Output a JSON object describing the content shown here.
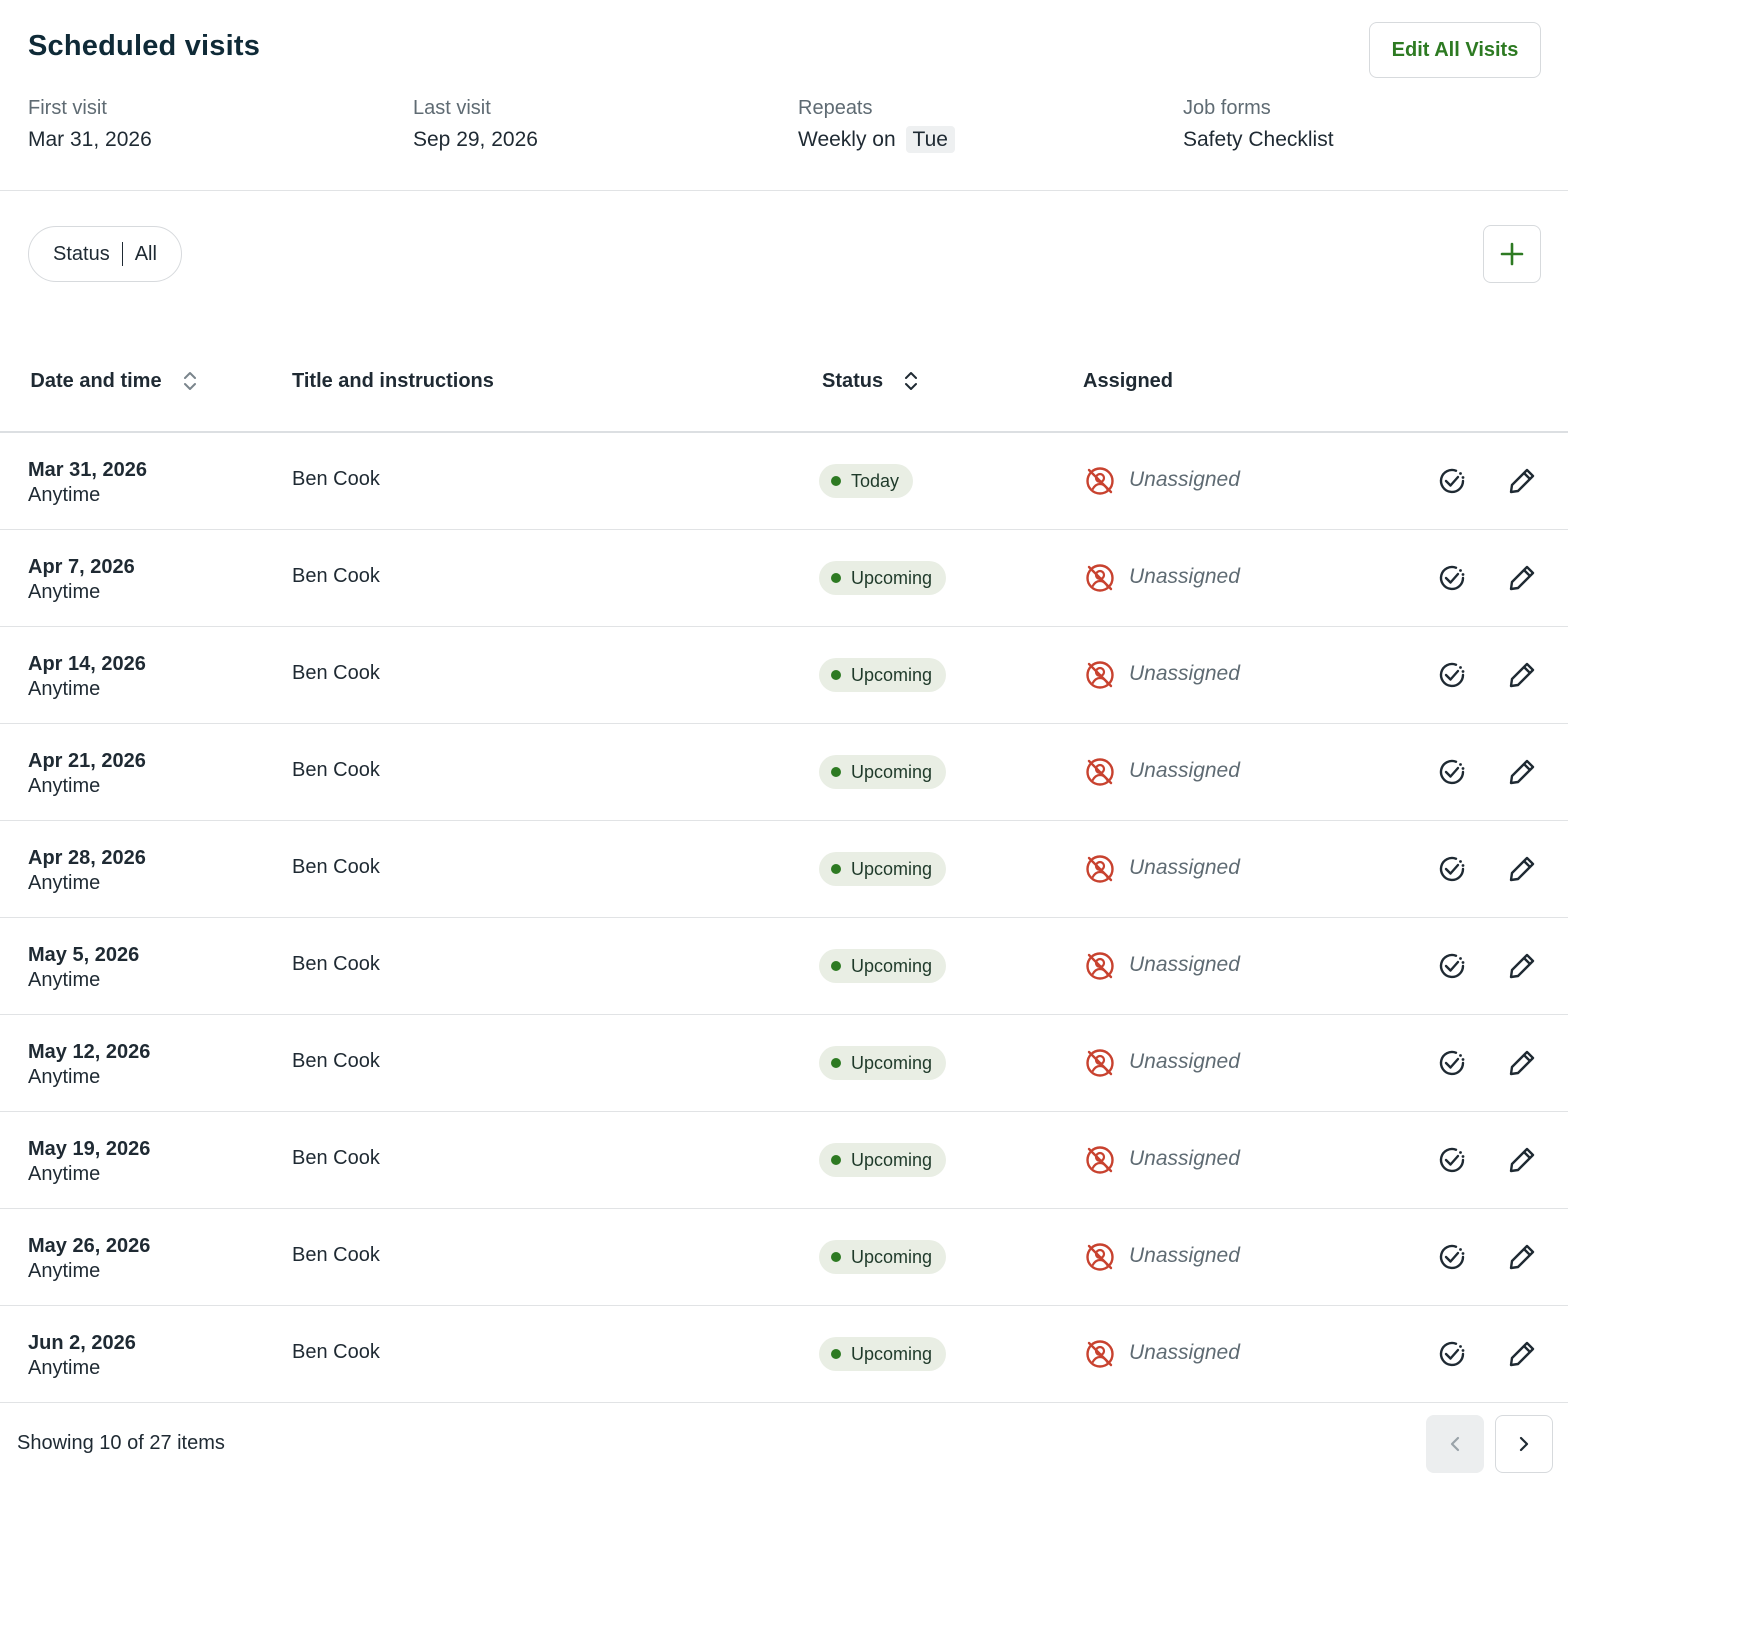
{
  "header": {
    "title": "Scheduled visits",
    "edit_all_label": "Edit All Visits"
  },
  "summary": {
    "first_visit_label": "First visit",
    "first_visit_value": "Mar 31, 2026",
    "last_visit_label": "Last visit",
    "last_visit_value": "Sep 29, 2026",
    "repeats_label": "Repeats",
    "repeats_prefix": "Weekly on",
    "repeats_day": "Tue",
    "job_forms_label": "Job forms",
    "job_forms_value": "Safety Checklist"
  },
  "filter": {
    "status_label": "Status",
    "status_value": "All"
  },
  "table": {
    "columns": {
      "date": "Date and time",
      "title": "Title and instructions",
      "status": "Status",
      "assigned": "Assigned"
    },
    "rows": [
      {
        "date": "Mar 31, 2026",
        "time": "Anytime",
        "title": "Ben Cook",
        "status": "Today",
        "assigned": "Unassigned"
      },
      {
        "date": "Apr 7, 2026",
        "time": "Anytime",
        "title": "Ben Cook",
        "status": "Upcoming",
        "assigned": "Unassigned"
      },
      {
        "date": "Apr 14, 2026",
        "time": "Anytime",
        "title": "Ben Cook",
        "status": "Upcoming",
        "assigned": "Unassigned"
      },
      {
        "date": "Apr 21, 2026",
        "time": "Anytime",
        "title": "Ben Cook",
        "status": "Upcoming",
        "assigned": "Unassigned"
      },
      {
        "date": "Apr 28, 2026",
        "time": "Anytime",
        "title": "Ben Cook",
        "status": "Upcoming",
        "assigned": "Unassigned"
      },
      {
        "date": "May 5, 2026",
        "time": "Anytime",
        "title": "Ben Cook",
        "status": "Upcoming",
        "assigned": "Unassigned"
      },
      {
        "date": "May 12, 2026",
        "time": "Anytime",
        "title": "Ben Cook",
        "status": "Upcoming",
        "assigned": "Unassigned"
      },
      {
        "date": "May 19, 2026",
        "time": "Anytime",
        "title": "Ben Cook",
        "status": "Upcoming",
        "assigned": "Unassigned"
      },
      {
        "date": "May 26, 2026",
        "time": "Anytime",
        "title": "Ben Cook",
        "status": "Upcoming",
        "assigned": "Unassigned"
      },
      {
        "date": "Jun 2, 2026",
        "time": "Anytime",
        "title": "Ben Cook",
        "status": "Upcoming",
        "assigned": "Unassigned"
      }
    ]
  },
  "footer": {
    "showing_text": "Showing 10 of 27 items"
  },
  "colors": {
    "accent_green": "#2d7a22",
    "unassigned_red": "#c8422f",
    "title_navy": "#0f2a37"
  }
}
